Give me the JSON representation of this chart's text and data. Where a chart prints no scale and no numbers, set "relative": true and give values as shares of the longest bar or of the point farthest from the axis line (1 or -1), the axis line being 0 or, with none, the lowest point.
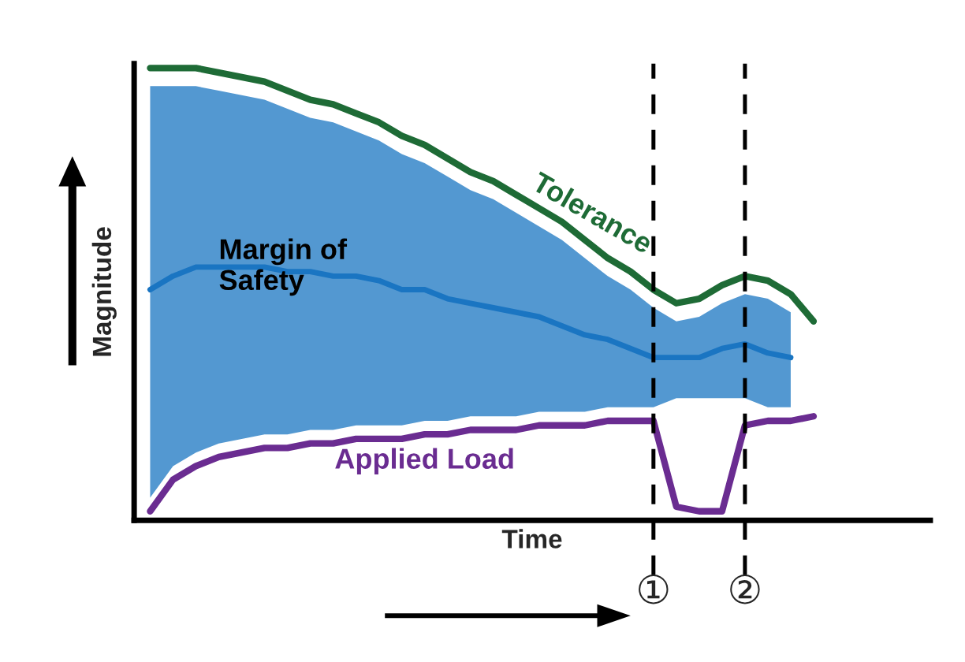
{
  "chart_data": {
    "type": "line",
    "relative": true,
    "xlabel": "Time",
    "ylabel": "Magnitude",
    "categories": [
      null,
      null,
      null,
      null,
      null,
      null,
      null,
      null,
      null,
      null,
      null,
      null,
      null,
      null,
      null,
      null,
      null,
      null,
      null,
      null,
      null,
      null,
      null,
      null,
      null,
      null,
      null,
      null,
      null,
      null
    ],
    "series": [
      {
        "name": "Margin of Safety",
        "color": "#1a75c2",
        "values": [
          0.51,
          0.54,
          0.56,
          0.56,
          0.56,
          0.56,
          0.55,
          0.55,
          0.54,
          0.54,
          0.53,
          0.51,
          0.51,
          0.49,
          0.48,
          0.47,
          0.46,
          0.45,
          0.43,
          0.41,
          0.4,
          0.38,
          0.36,
          0.36,
          0.36,
          0.38,
          0.39,
          0.37,
          0.36,
          null
        ],
        "upper": [
          0.96,
          0.96,
          0.96,
          0.95,
          0.94,
          0.93,
          0.91,
          0.89,
          0.88,
          0.86,
          0.84,
          0.81,
          0.79,
          0.76,
          0.73,
          0.71,
          0.68,
          0.65,
          0.62,
          0.58,
          0.54,
          0.51,
          0.47,
          0.44,
          0.45,
          0.48,
          0.5,
          0.49,
          0.46,
          null
        ],
        "lower": [
          0.05,
          0.12,
          0.15,
          0.17,
          0.18,
          0.19,
          0.19,
          0.2,
          0.2,
          0.21,
          0.21,
          0.21,
          0.22,
          0.22,
          0.23,
          0.23,
          0.23,
          0.24,
          0.24,
          0.24,
          0.25,
          0.25,
          0.25,
          0.27,
          0.27,
          0.27,
          0.27,
          0.25,
          0.25,
          null
        ]
      },
      {
        "name": "Tolerance",
        "color": "#1e6b36",
        "values": [
          1.0,
          1.0,
          1.0,
          0.99,
          0.98,
          0.97,
          0.95,
          0.93,
          0.92,
          0.9,
          0.88,
          0.85,
          0.83,
          0.8,
          0.77,
          0.75,
          0.72,
          0.69,
          0.66,
          0.62,
          0.58,
          0.55,
          0.51,
          0.48,
          0.49,
          0.52,
          0.54,
          0.53,
          0.5,
          0.44
        ]
      },
      {
        "name": "Applied Load",
        "color": "#6a2c91",
        "values": [
          0.02,
          0.09,
          0.12,
          0.14,
          0.15,
          0.16,
          0.16,
          0.17,
          0.17,
          0.18,
          0.18,
          0.18,
          0.19,
          0.19,
          0.2,
          0.2,
          0.2,
          0.21,
          0.21,
          0.21,
          0.22,
          0.22,
          0.22,
          0.03,
          0.02,
          0.02,
          0.21,
          0.22,
          0.22,
          0.23
        ]
      }
    ],
    "annotations": [
      "①",
      "②"
    ]
  }
}
